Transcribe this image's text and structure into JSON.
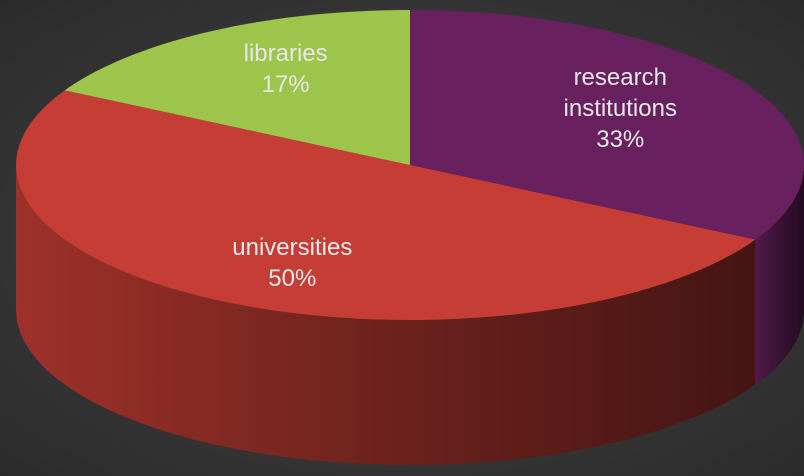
{
  "chart_data": {
    "type": "pie",
    "categories": [
      "research institutions",
      "universities",
      "libraries"
    ],
    "values": [
      33,
      50,
      17
    ],
    "value_labels": [
      "33%",
      "50%",
      "17%"
    ],
    "colors": [
      "#68205f",
      "#c63d35",
      "#9dc44b"
    ]
  }
}
